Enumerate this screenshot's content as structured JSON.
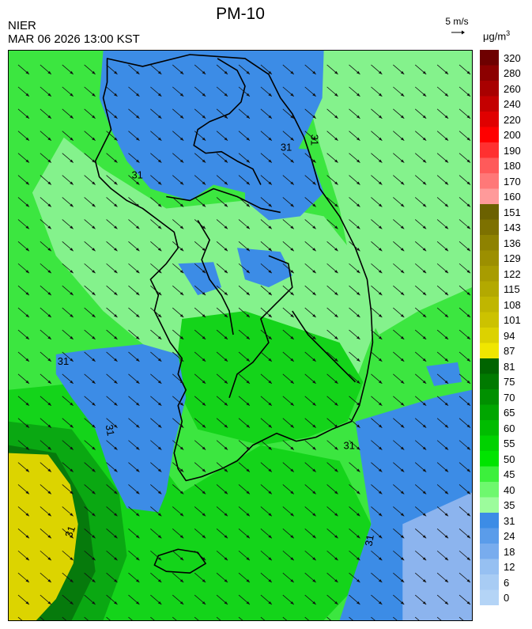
{
  "header": {
    "agency": "NIER",
    "timestamp": "MAR 06 2026 13:00 KST",
    "title": "PM-10",
    "wind_scale_label": "5 m/s",
    "unit_main": "μg/m",
    "unit_sup": "3"
  },
  "map": {
    "contour_label": "31",
    "colors": {
      "blue_dark": "#3c8ce6",
      "blue_light": "#8cb4ee",
      "green_light": "#84f28c",
      "green_mid": "#3ce640",
      "green_bright": "#14d41a",
      "green_dark": "#0aa812",
      "green_darker": "#067a0c",
      "yellow": "#dcd400",
      "yellow_dark": "#c8c000"
    }
  },
  "legend": {
    "bins": [
      {
        "label": "320",
        "color": "#6e0000"
      },
      {
        "label": "280",
        "color": "#8c0000"
      },
      {
        "label": "260",
        "color": "#a80000"
      },
      {
        "label": "240",
        "color": "#c40000"
      },
      {
        "label": "220",
        "color": "#e00000"
      },
      {
        "label": "200",
        "color": "#ff0000"
      },
      {
        "label": "190",
        "color": "#ff3030"
      },
      {
        "label": "180",
        "color": "#ff5a5a"
      },
      {
        "label": "170",
        "color": "#ff7878"
      },
      {
        "label": "160",
        "color": "#ff9a9a"
      },
      {
        "label": "151",
        "color": "#6b6100"
      },
      {
        "label": "143",
        "color": "#7d7100"
      },
      {
        "label": "136",
        "color": "#8e8200"
      },
      {
        "label": "129",
        "color": "#9c8f00"
      },
      {
        "label": "122",
        "color": "#a89c00"
      },
      {
        "label": "115",
        "color": "#b3a900"
      },
      {
        "label": "108",
        "color": "#c0b600"
      },
      {
        "label": "101",
        "color": "#ccc200"
      },
      {
        "label": "94",
        "color": "#dcd200"
      },
      {
        "label": "87",
        "color": "#f0e600"
      },
      {
        "label": "81",
        "color": "#006400"
      },
      {
        "label": "75",
        "color": "#007a00"
      },
      {
        "label": "70",
        "color": "#009000"
      },
      {
        "label": "65",
        "color": "#00a600"
      },
      {
        "label": "60",
        "color": "#00bc00"
      },
      {
        "label": "55",
        "color": "#00d200"
      },
      {
        "label": "50",
        "color": "#00e400"
      },
      {
        "label": "45",
        "color": "#3cf03c"
      },
      {
        "label": "40",
        "color": "#6ef86e"
      },
      {
        "label": "35",
        "color": "#9cfc9c"
      },
      {
        "label": "31",
        "color": "#3c8ce6"
      },
      {
        "label": "24",
        "color": "#5a9cea"
      },
      {
        "label": "18",
        "color": "#78acee"
      },
      {
        "label": "12",
        "color": "#96c0f2"
      },
      {
        "label": "6",
        "color": "#a8ccf4"
      },
      {
        "label": "0",
        "color": "#b4d4f6"
      }
    ]
  }
}
